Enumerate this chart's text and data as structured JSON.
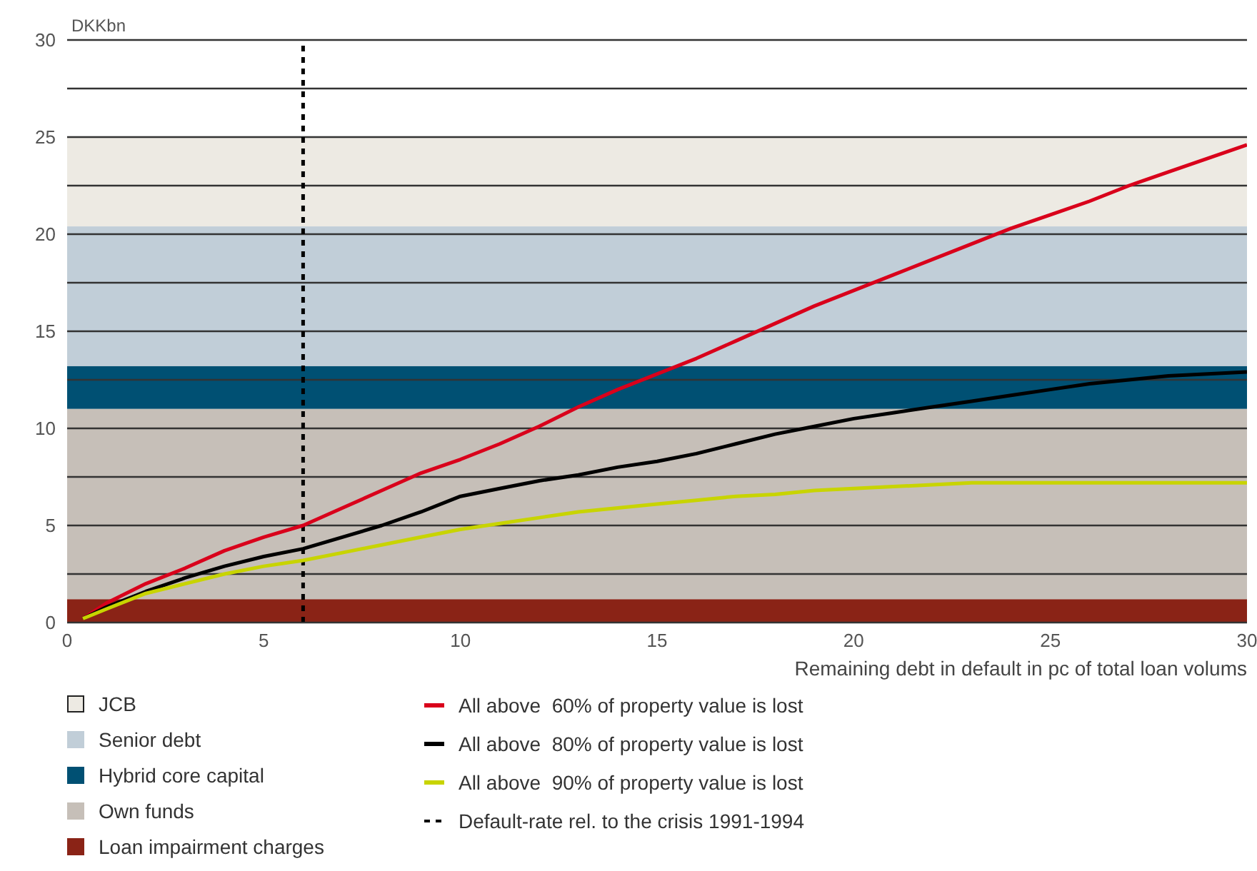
{
  "chart_data": {
    "type": "line",
    "ylabel": "DKKbn",
    "xlabel": "Remaining debt in default in pc of total loan volums",
    "x": [
      0.4,
      1,
      2,
      3,
      4,
      5,
      6,
      7,
      8,
      9,
      10,
      11,
      12,
      13,
      14,
      15,
      16,
      17,
      18,
      19,
      20,
      21,
      22,
      23,
      24,
      25,
      26,
      27,
      28,
      29,
      30
    ],
    "series": [
      {
        "name": "All above  60% of property value is lost",
        "color": "#d9001b",
        "values": [
          0.2,
          1.0,
          2.0,
          2.8,
          3.7,
          4.4,
          5.0,
          5.9,
          6.8,
          7.7,
          8.4,
          9.2,
          10.1,
          11.1,
          12.0,
          12.8,
          13.6,
          14.5,
          15.4,
          16.3,
          17.1,
          17.9,
          18.7,
          19.5,
          20.3,
          21.0,
          21.7,
          22.5,
          23.2,
          23.9,
          24.6
        ]
      },
      {
        "name": "All above  80% of property value is lost",
        "color": "#000000",
        "values": [
          0.2,
          0.8,
          1.6,
          2.3,
          2.9,
          3.4,
          3.8,
          4.4,
          5.0,
          5.7,
          6.5,
          6.9,
          7.3,
          7.6,
          8.0,
          8.3,
          8.7,
          9.2,
          9.7,
          10.1,
          10.5,
          10.8,
          11.1,
          11.4,
          11.7,
          12.0,
          12.3,
          12.5,
          12.7,
          12.8,
          12.9
        ]
      },
      {
        "name": "All above  90% of property value is lost",
        "color": "#c8d400",
        "values": [
          0.2,
          0.7,
          1.5,
          2.0,
          2.5,
          2.9,
          3.2,
          3.6,
          4.0,
          4.4,
          4.8,
          5.1,
          5.4,
          5.7,
          5.9,
          6.1,
          6.3,
          6.5,
          6.6,
          6.8,
          6.9,
          7.0,
          7.1,
          7.2,
          7.2,
          7.2,
          7.2,
          7.2,
          7.2,
          7.2,
          7.2
        ]
      }
    ],
    "bands": [
      {
        "axis": "y",
        "from": 20.4,
        "to": 25,
        "label": "JCB",
        "color": "#edeae3"
      },
      {
        "axis": "y",
        "from": 13.2,
        "to": 20.4,
        "label": "Senior debt",
        "color": "#c1ced8"
      },
      {
        "axis": "y",
        "from": 11,
        "to": 13.2,
        "label": "Hybrid core capital",
        "color": "#005073"
      },
      {
        "axis": "y",
        "from": 1.2,
        "to": 11,
        "label": "Own funds",
        "color": "#c6bfb8"
      },
      {
        "axis": "y",
        "from": 0,
        "to": 1.2,
        "label": "Loan impairment charges",
        "color": "#8a2316"
      }
    ],
    "ref_lines": [
      {
        "axis": "x",
        "value": 6,
        "label": "Default-rate rel. to the crisis 1991-1994",
        "color": "#000000",
        "line_style": "dashed"
      }
    ],
    "xlim": [
      0,
      30
    ],
    "xticks": [
      0,
      5,
      10,
      15,
      20,
      25,
      30
    ],
    "ylim": [
      0,
      30
    ],
    "yticks": [
      0,
      {
        "value": 2.5,
        "label": null
      },
      5,
      {
        "value": 7.5,
        "label": null
      },
      10,
      {
        "value": 12.5,
        "label": null
      },
      15,
      {
        "value": 17.5,
        "label": null
      },
      20,
      {
        "value": 22.5,
        "label": null
      },
      25,
      {
        "value": 27.5,
        "label": null
      },
      30
    ],
    "grid": "y",
    "legend": "bottom",
    "marker": "none",
    "line_style": "solid"
  }
}
